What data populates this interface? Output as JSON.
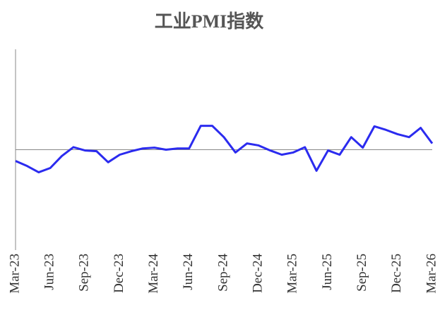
{
  "chart_data": {
    "type": "line",
    "title": "工业PMI指数",
    "categories": [
      "Mar-23",
      null,
      null,
      "Jun-23",
      null,
      null,
      "Sep-23",
      null,
      null,
      "Dec-23",
      null,
      null,
      "Mar-24",
      null,
      null,
      "Jun-24",
      null,
      null,
      "Sep-24",
      null,
      null,
      "Dec-24",
      null,
      null,
      "Mar-25",
      null,
      null,
      "Jun-25",
      null,
      null,
      "Sep-25",
      null,
      null,
      "Dec-25",
      null,
      null,
      "Mar-26"
    ],
    "series": [
      {
        "name": "工业PMI指数",
        "color": "#2b2bef",
        "values": [
          49.55,
          49.35,
          49.1,
          49.27,
          49.75,
          50.1,
          49.97,
          49.94,
          49.5,
          49.8,
          49.94,
          50.05,
          50.08,
          50.0,
          50.05,
          50.05,
          50.95,
          50.95,
          50.5,
          49.89,
          50.25,
          50.17,
          49.97,
          49.8,
          49.89,
          50.1,
          49.16,
          49.97,
          49.8,
          50.5,
          50.08,
          50.93,
          50.79,
          50.62,
          50.5,
          50.87,
          50.25
        ]
      }
    ],
    "ylim": [
      46,
      54
    ],
    "reference_line": 50
  }
}
